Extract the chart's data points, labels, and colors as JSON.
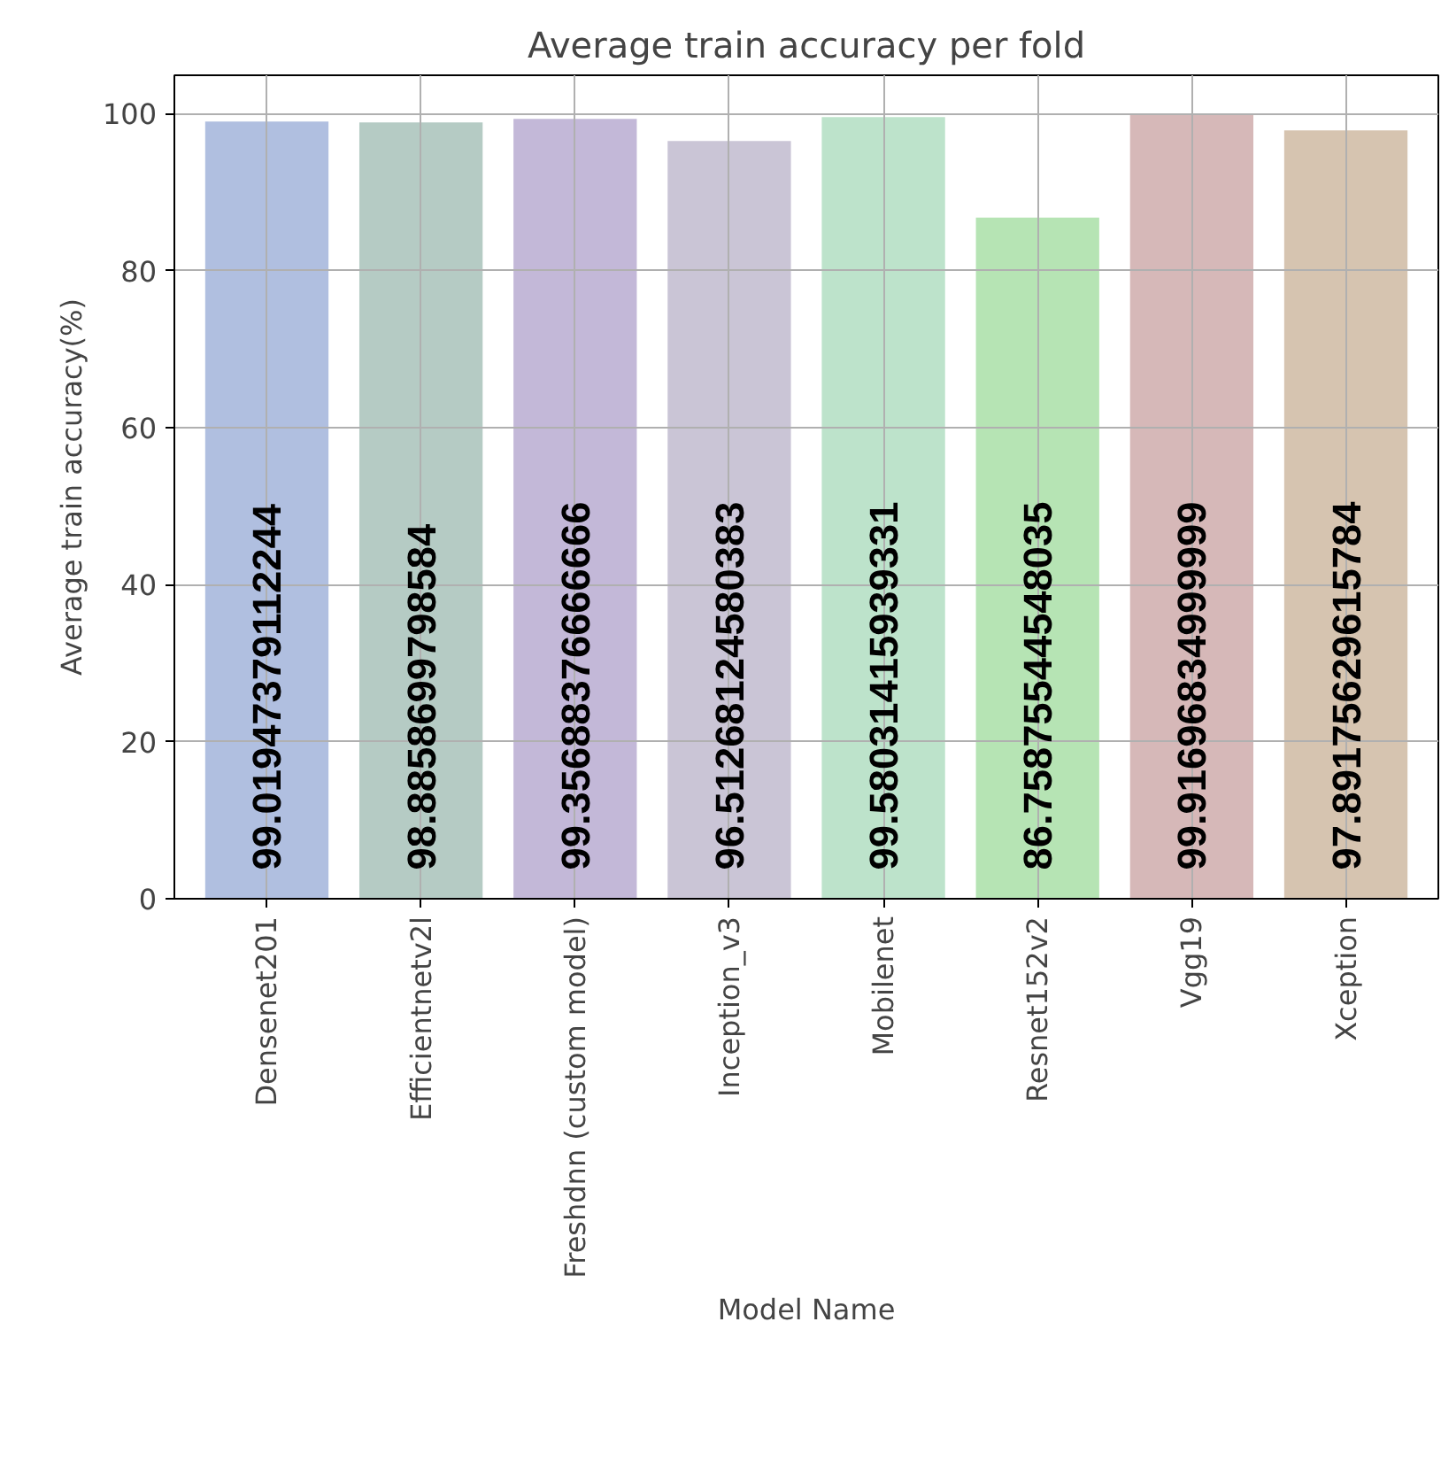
{
  "chart_data": {
    "type": "bar",
    "title": "Average train accuracy per fold",
    "xlabel": "Model Name",
    "ylabel": "Average train accuracy(%)",
    "categories": [
      "Densenet201",
      "Efficientnetv2l",
      "Freshdnn (custom model)",
      "Inception_v3",
      "Mobilenet",
      "Resnet152v2",
      "Vgg19",
      "Xception"
    ],
    "values": [
      99.01947379112244,
      98.8858699798584,
      99.35688376666666,
      96.51268124580383,
      99.58031415939331,
      86.75875544548035,
      99.91696834999999,
      97.89175629615784
    ],
    "colors": [
      "#b0bfe0",
      "#b5cbc4",
      "#c3b8d8",
      "#cac5d6",
      "#bde3cb",
      "#b6e4b4",
      "#d6b8b8",
      "#d6c4b0"
    ],
    "ylim": [
      0,
      104.9
    ],
    "yticks": [
      0,
      20,
      40,
      60,
      80,
      100
    ],
    "grid": true,
    "data_labels": true
  }
}
